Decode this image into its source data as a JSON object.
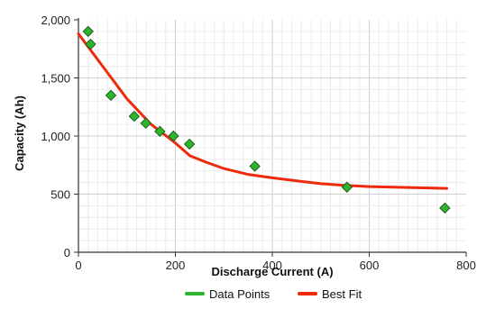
{
  "chart_data": {
    "type": "scatter",
    "title": "",
    "xlabel": "Discharge Current (A)",
    "ylabel": "Capacity (Ah)",
    "xlim": [
      0,
      800
    ],
    "ylim": [
      0,
      2000
    ],
    "x_ticks": [
      0,
      200,
      400,
      600,
      800
    ],
    "x_tick_labels": [
      "0",
      "200",
      "400",
      "600",
      "800"
    ],
    "y_ticks": [
      0,
      500,
      1000,
      1500,
      2000
    ],
    "y_tick_labels": [
      "0",
      "500",
      "1,000",
      "1,500",
      "2,000"
    ],
    "grid": true,
    "legend_position": "bottom",
    "series": [
      {
        "name": "Data Points",
        "kind": "scatter",
        "color": "#2db52d",
        "marker": "diamond",
        "x": [
          20,
          25,
          67,
          115,
          139,
          168,
          196,
          229,
          364,
          554,
          756
        ],
        "y": [
          1900,
          1790,
          1350,
          1170,
          1110,
          1040,
          1000,
          930,
          740,
          560,
          380
        ]
      },
      {
        "name": "Best Fit",
        "kind": "line",
        "color": "#ee2a0c",
        "x": [
          0,
          50,
          100,
          150,
          200,
          230,
          260,
          300,
          350,
          400,
          450,
          500,
          550,
          600,
          650,
          700,
          760
        ],
        "y": [
          1880,
          1600,
          1320,
          1100,
          940,
          830,
          780,
          720,
          670,
          640,
          615,
          590,
          575,
          565,
          560,
          555,
          550
        ]
      }
    ]
  }
}
